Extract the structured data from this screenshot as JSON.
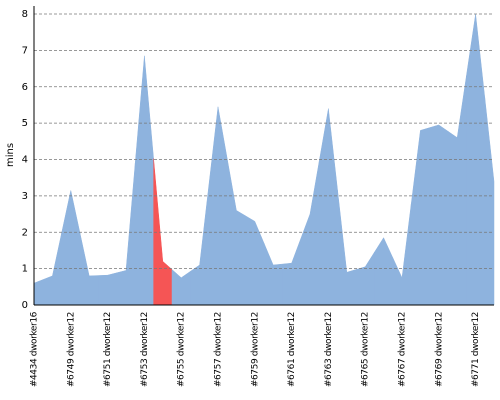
{
  "chart_data": {
    "type": "area",
    "y_label": "mins",
    "categories": [
      "#4434 dworker16",
      null,
      "#6749 dworker12",
      null,
      "#6751 dworker12",
      null,
      "#6753 dworker12",
      null,
      "#6755 dworker12",
      null,
      "#6757 dworker12",
      null,
      "#6759 dworker12",
      null,
      "#6761 dworker12",
      null,
      "#6763 dworker12",
      null,
      "#6765 dworker12",
      null,
      "#6767 dworker12",
      null,
      "#6769 dworker12",
      null,
      "#6771 dworker12",
      null
    ],
    "values": [
      0.6,
      0.8,
      3.15,
      0.8,
      0.82,
      0.95,
      6.85,
      1.2,
      0.75,
      1.1,
      5.45,
      2.6,
      2.3,
      1.1,
      1.15,
      2.5,
      5.4,
      0.9,
      1.05,
      1.85,
      0.75,
      4.8,
      4.95,
      4.6,
      8.0,
      3.4
    ],
    "point_colors": [
      "#8eb3de",
      "#8eb3de",
      "#8eb3de",
      "#8eb3de",
      "#8eb3de",
      "#8eb3de",
      "#8eb3de",
      "#f55555",
      "#8eb3de",
      "#8eb3de",
      "#8eb3de",
      "#8eb3de",
      "#8eb3de",
      "#8eb3de",
      "#8eb3de",
      "#8eb3de",
      "#8eb3de",
      "#8eb3de",
      "#8eb3de",
      "#8eb3de",
      "#8eb3de",
      "#8eb3de",
      "#8eb3de",
      "#8eb3de",
      "#8eb3de",
      "#8eb3de"
    ],
    "ylim": [
      0,
      8
    ],
    "yticks": [
      0,
      1,
      2,
      3,
      4,
      5,
      6,
      7,
      8
    ],
    "grid": true
  }
}
